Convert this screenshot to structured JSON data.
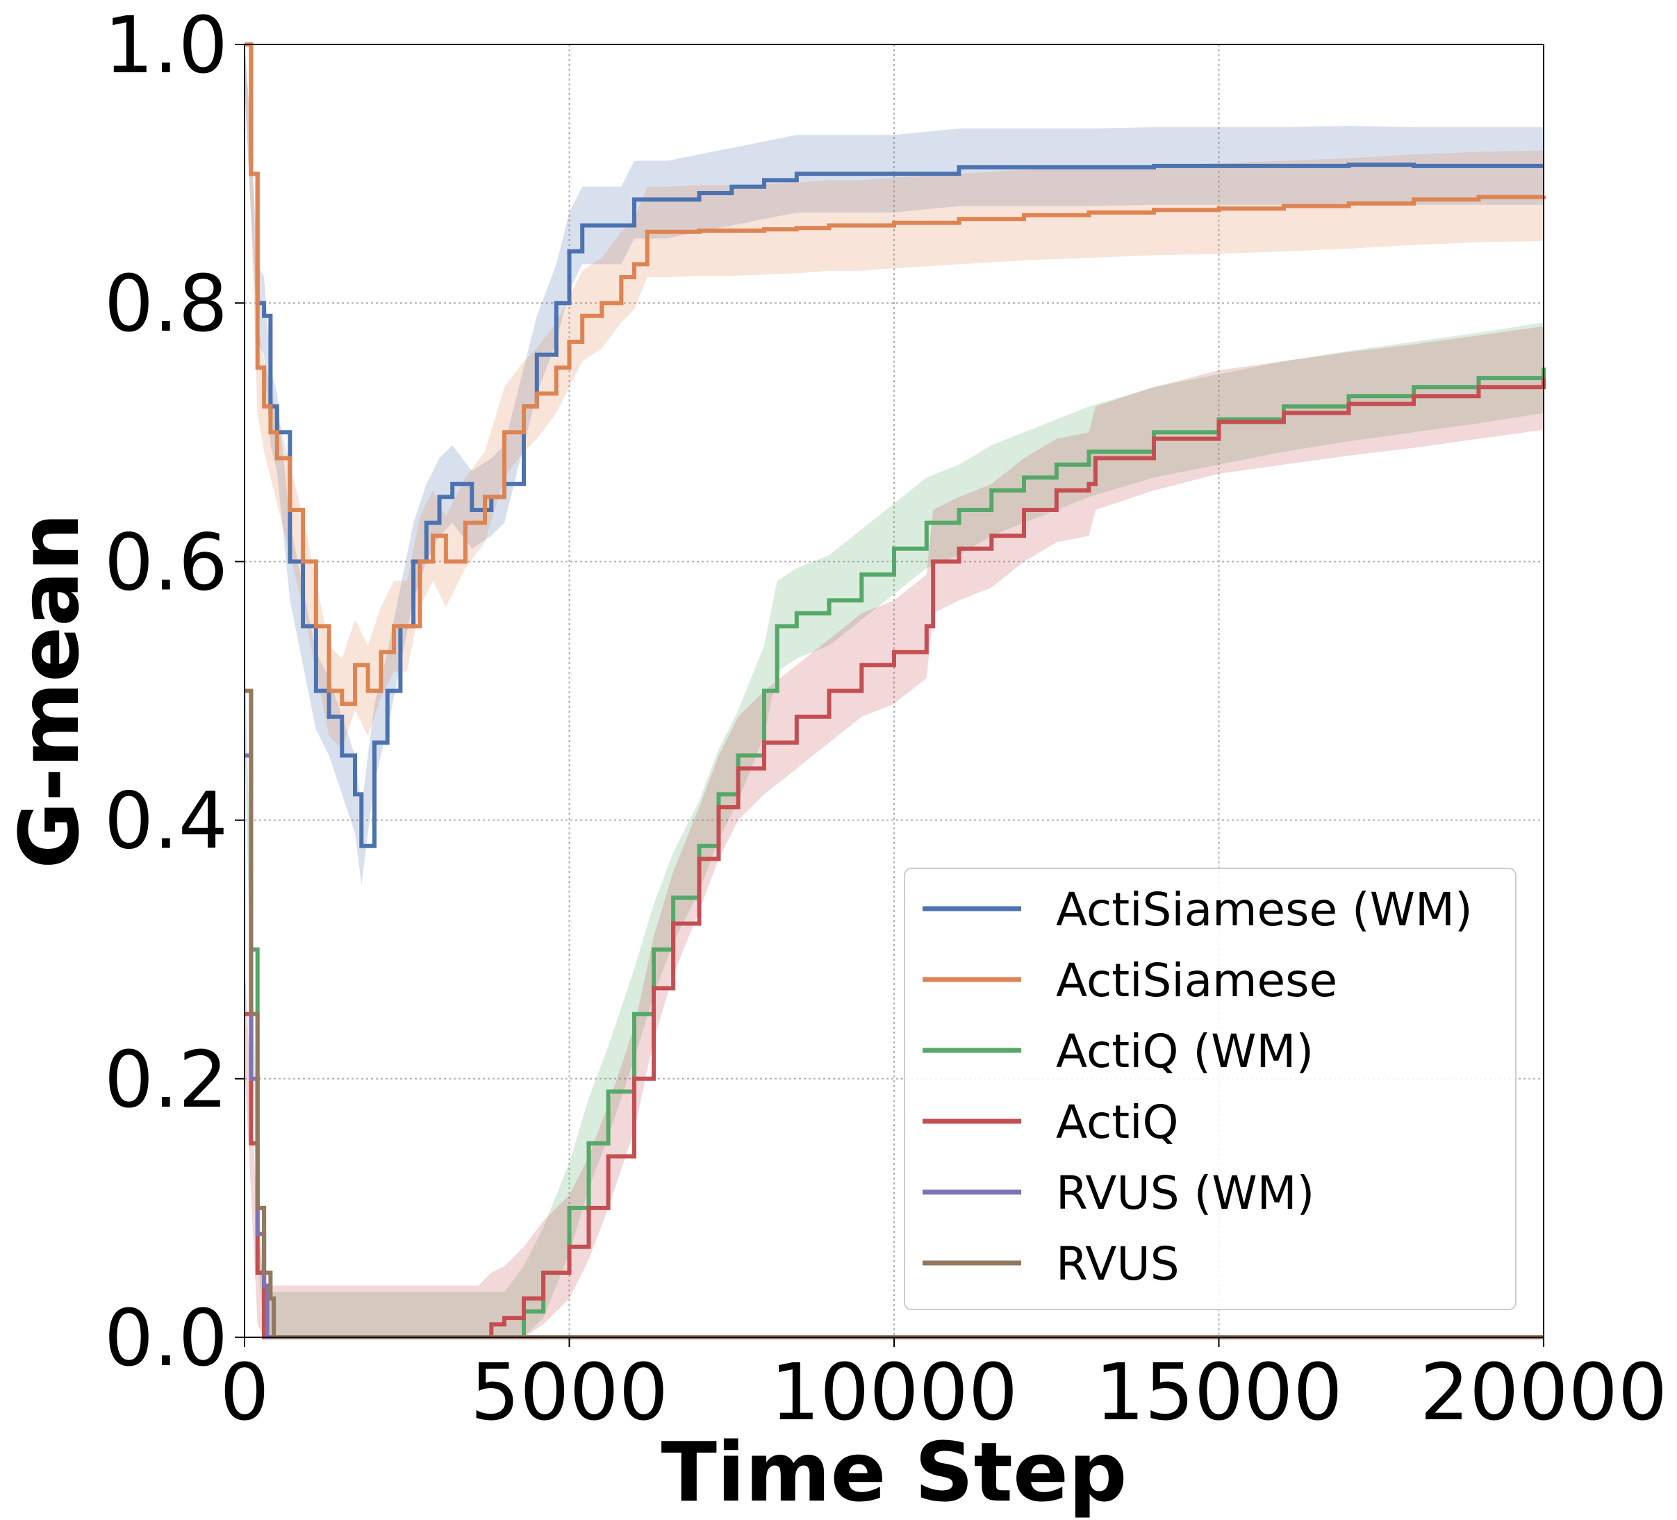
{
  "chart_data": {
    "type": "line",
    "title": "",
    "xlabel": "Time Step",
    "ylabel": "G-mean",
    "xlim": [
      0,
      20000
    ],
    "ylim": [
      0.0,
      1.0
    ],
    "xticks": [
      0,
      5000,
      10000,
      15000,
      20000
    ],
    "xtick_labels": [
      "0",
      "5000",
      "10000",
      "15000",
      "20000"
    ],
    "yticks": [
      0.0,
      0.2,
      0.4,
      0.6,
      0.8,
      1.0
    ],
    "ytick_labels": [
      "0.0",
      "0.2",
      "0.4",
      "0.6",
      "0.8",
      "1.0"
    ],
    "grid": true,
    "legend_position": "bottom-right",
    "series": [
      {
        "name": "ActiSiamese (WM)",
        "color": "#4c72b0",
        "band_width": 0.03,
        "x": [
          0,
          100,
          200,
          300,
          400,
          500,
          700,
          900,
          1100,
          1300,
          1500,
          1700,
          1800,
          2000,
          2200,
          2400,
          2600,
          2800,
          3000,
          3200,
          3500,
          3800,
          4000,
          4300,
          4500,
          4800,
          5000,
          5200,
          5500,
          5800,
          6000,
          6500,
          7000,
          7500,
          8000,
          8500,
          9000,
          9500,
          10000,
          11000,
          12000,
          13000,
          14000,
          15000,
          16000,
          17000,
          18000,
          19000,
          20000
        ],
        "values": [
          1.0,
          0.9,
          0.8,
          0.79,
          0.72,
          0.7,
          0.6,
          0.55,
          0.5,
          0.48,
          0.45,
          0.42,
          0.38,
          0.46,
          0.5,
          0.55,
          0.6,
          0.63,
          0.65,
          0.66,
          0.64,
          0.65,
          0.66,
          0.72,
          0.76,
          0.8,
          0.84,
          0.86,
          0.86,
          0.86,
          0.88,
          0.88,
          0.885,
          0.89,
          0.895,
          0.9,
          0.9,
          0.9,
          0.9,
          0.905,
          0.905,
          0.905,
          0.906,
          0.906,
          0.906,
          0.907,
          0.906,
          0.906,
          0.906
        ]
      },
      {
        "name": "ActiSiamese",
        "color": "#dd8452",
        "band_width": 0.035,
        "x": [
          0,
          100,
          200,
          300,
          400,
          500,
          700,
          900,
          1100,
          1300,
          1500,
          1700,
          1900,
          2100,
          2300,
          2500,
          2700,
          2900,
          3100,
          3400,
          3700,
          4000,
          4300,
          4500,
          4800,
          5000,
          5200,
          5500,
          5800,
          6000,
          6200,
          6500,
          7000,
          7500,
          8000,
          8500,
          9000,
          9500,
          10000,
          11000,
          12000,
          13000,
          14000,
          15000,
          16000,
          17000,
          18000,
          19000,
          20000
        ],
        "values": [
          1.0,
          0.9,
          0.75,
          0.72,
          0.7,
          0.68,
          0.64,
          0.6,
          0.55,
          0.5,
          0.49,
          0.52,
          0.5,
          0.53,
          0.55,
          0.55,
          0.6,
          0.62,
          0.6,
          0.63,
          0.65,
          0.7,
          0.72,
          0.73,
          0.75,
          0.77,
          0.79,
          0.8,
          0.82,
          0.83,
          0.855,
          0.855,
          0.856,
          0.856,
          0.857,
          0.858,
          0.86,
          0.86,
          0.862,
          0.865,
          0.868,
          0.87,
          0.872,
          0.873,
          0.875,
          0.877,
          0.88,
          0.882,
          0.883
        ]
      },
      {
        "name": "ActiQ (WM)",
        "color": "#55a868",
        "band_width": 0.035,
        "x": [
          0,
          100,
          200,
          300,
          400,
          500,
          3800,
          4000,
          4300,
          4600,
          5000,
          5300,
          5600,
          6000,
          6300,
          6600,
          7000,
          7300,
          7600,
          8000,
          8200,
          8500,
          9000,
          9500,
          10000,
          10500,
          11000,
          11500,
          12000,
          12500,
          13000,
          14000,
          15000,
          16000,
          17000,
          18000,
          19000,
          20000
        ],
        "values": [
          0.5,
          0.3,
          0.1,
          0.0,
          0.0,
          0.0,
          0.0,
          0.0,
          0.02,
          0.05,
          0.1,
          0.15,
          0.19,
          0.25,
          0.3,
          0.34,
          0.38,
          0.42,
          0.45,
          0.5,
          0.55,
          0.56,
          0.57,
          0.59,
          0.61,
          0.63,
          0.64,
          0.655,
          0.665,
          0.675,
          0.685,
          0.7,
          0.71,
          0.72,
          0.728,
          0.735,
          0.742,
          0.75
        ]
      },
      {
        "name": "ActiQ",
        "color": "#c44e52",
        "band_width": 0.04,
        "x": [
          0,
          100,
          200,
          300,
          400,
          500,
          3600,
          3800,
          4000,
          4300,
          4600,
          5000,
          5300,
          5600,
          6000,
          6300,
          6600,
          7000,
          7300,
          7600,
          8000,
          8500,
          9000,
          9500,
          10000,
          10500,
          10600,
          11000,
          11500,
          12000,
          12500,
          13000,
          13100,
          14000,
          15000,
          16000,
          17000,
          18000,
          19000,
          20000
        ],
        "values": [
          0.25,
          0.15,
          0.05,
          0.0,
          0.0,
          0.0,
          0.0,
          0.01,
          0.015,
          0.03,
          0.05,
          0.07,
          0.1,
          0.14,
          0.2,
          0.27,
          0.32,
          0.37,
          0.41,
          0.44,
          0.46,
          0.48,
          0.5,
          0.52,
          0.53,
          0.55,
          0.6,
          0.61,
          0.62,
          0.64,
          0.655,
          0.66,
          0.68,
          0.695,
          0.708,
          0.715,
          0.722,
          0.728,
          0.735,
          0.742
        ]
      },
      {
        "name": "RVUS (WM)",
        "color": "#8172b3",
        "band_width": 0.0,
        "x": [
          0,
          100,
          200,
          300,
          350,
          400,
          500,
          20000
        ],
        "values": [
          0.45,
          0.2,
          0.08,
          0.04,
          0.0,
          0.0,
          0.0,
          0.0
        ]
      },
      {
        "name": "RVUS",
        "color": "#937860",
        "band_width": 0.0,
        "x": [
          0,
          100,
          200,
          300,
          400,
          450,
          500,
          20000
        ],
        "values": [
          0.5,
          0.25,
          0.1,
          0.05,
          0.03,
          0.0,
          0.0,
          0.0
        ]
      }
    ]
  }
}
